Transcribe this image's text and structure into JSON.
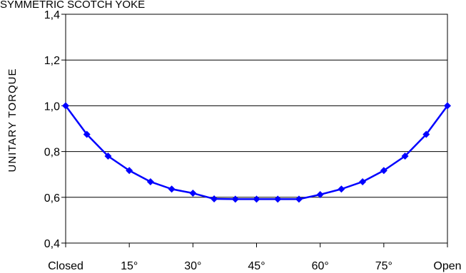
{
  "chart_data": {
    "type": "line",
    "title": "SYMMETRIC SCOTCH YOKE",
    "ylabel": "UNITARY TORQUE",
    "xlabel": "",
    "ylim": [
      0.4,
      1.4
    ],
    "yticks": [
      0.4,
      0.6,
      0.8,
      1.0,
      1.2,
      1.4
    ],
    "ytick_labels": [
      "0,4",
      "0,6",
      "0,8",
      "1,0",
      "1,2",
      "1,4"
    ],
    "xlim": [
      0,
      90
    ],
    "xtick_positions": [
      0,
      15,
      30,
      45,
      60,
      75,
      90
    ],
    "xtick_labels": [
      "Closed",
      "15°",
      "30°",
      "45°",
      "60°",
      "75°",
      "Open"
    ],
    "grid": "horizontal",
    "legend": "none",
    "series": [
      {
        "color": "#0000ff",
        "x": [
          0,
          5,
          10,
          15,
          20,
          25,
          30,
          35,
          40,
          45,
          50,
          55,
          60,
          65,
          70,
          75,
          80,
          85,
          90
        ],
        "values": [
          1.0,
          0.875,
          0.78,
          0.717,
          0.668,
          0.636,
          0.618,
          0.593,
          0.592,
          0.592,
          0.592,
          0.592,
          0.612,
          0.636,
          0.668,
          0.717,
          0.78,
          0.875,
          1.0
        ]
      }
    ]
  }
}
